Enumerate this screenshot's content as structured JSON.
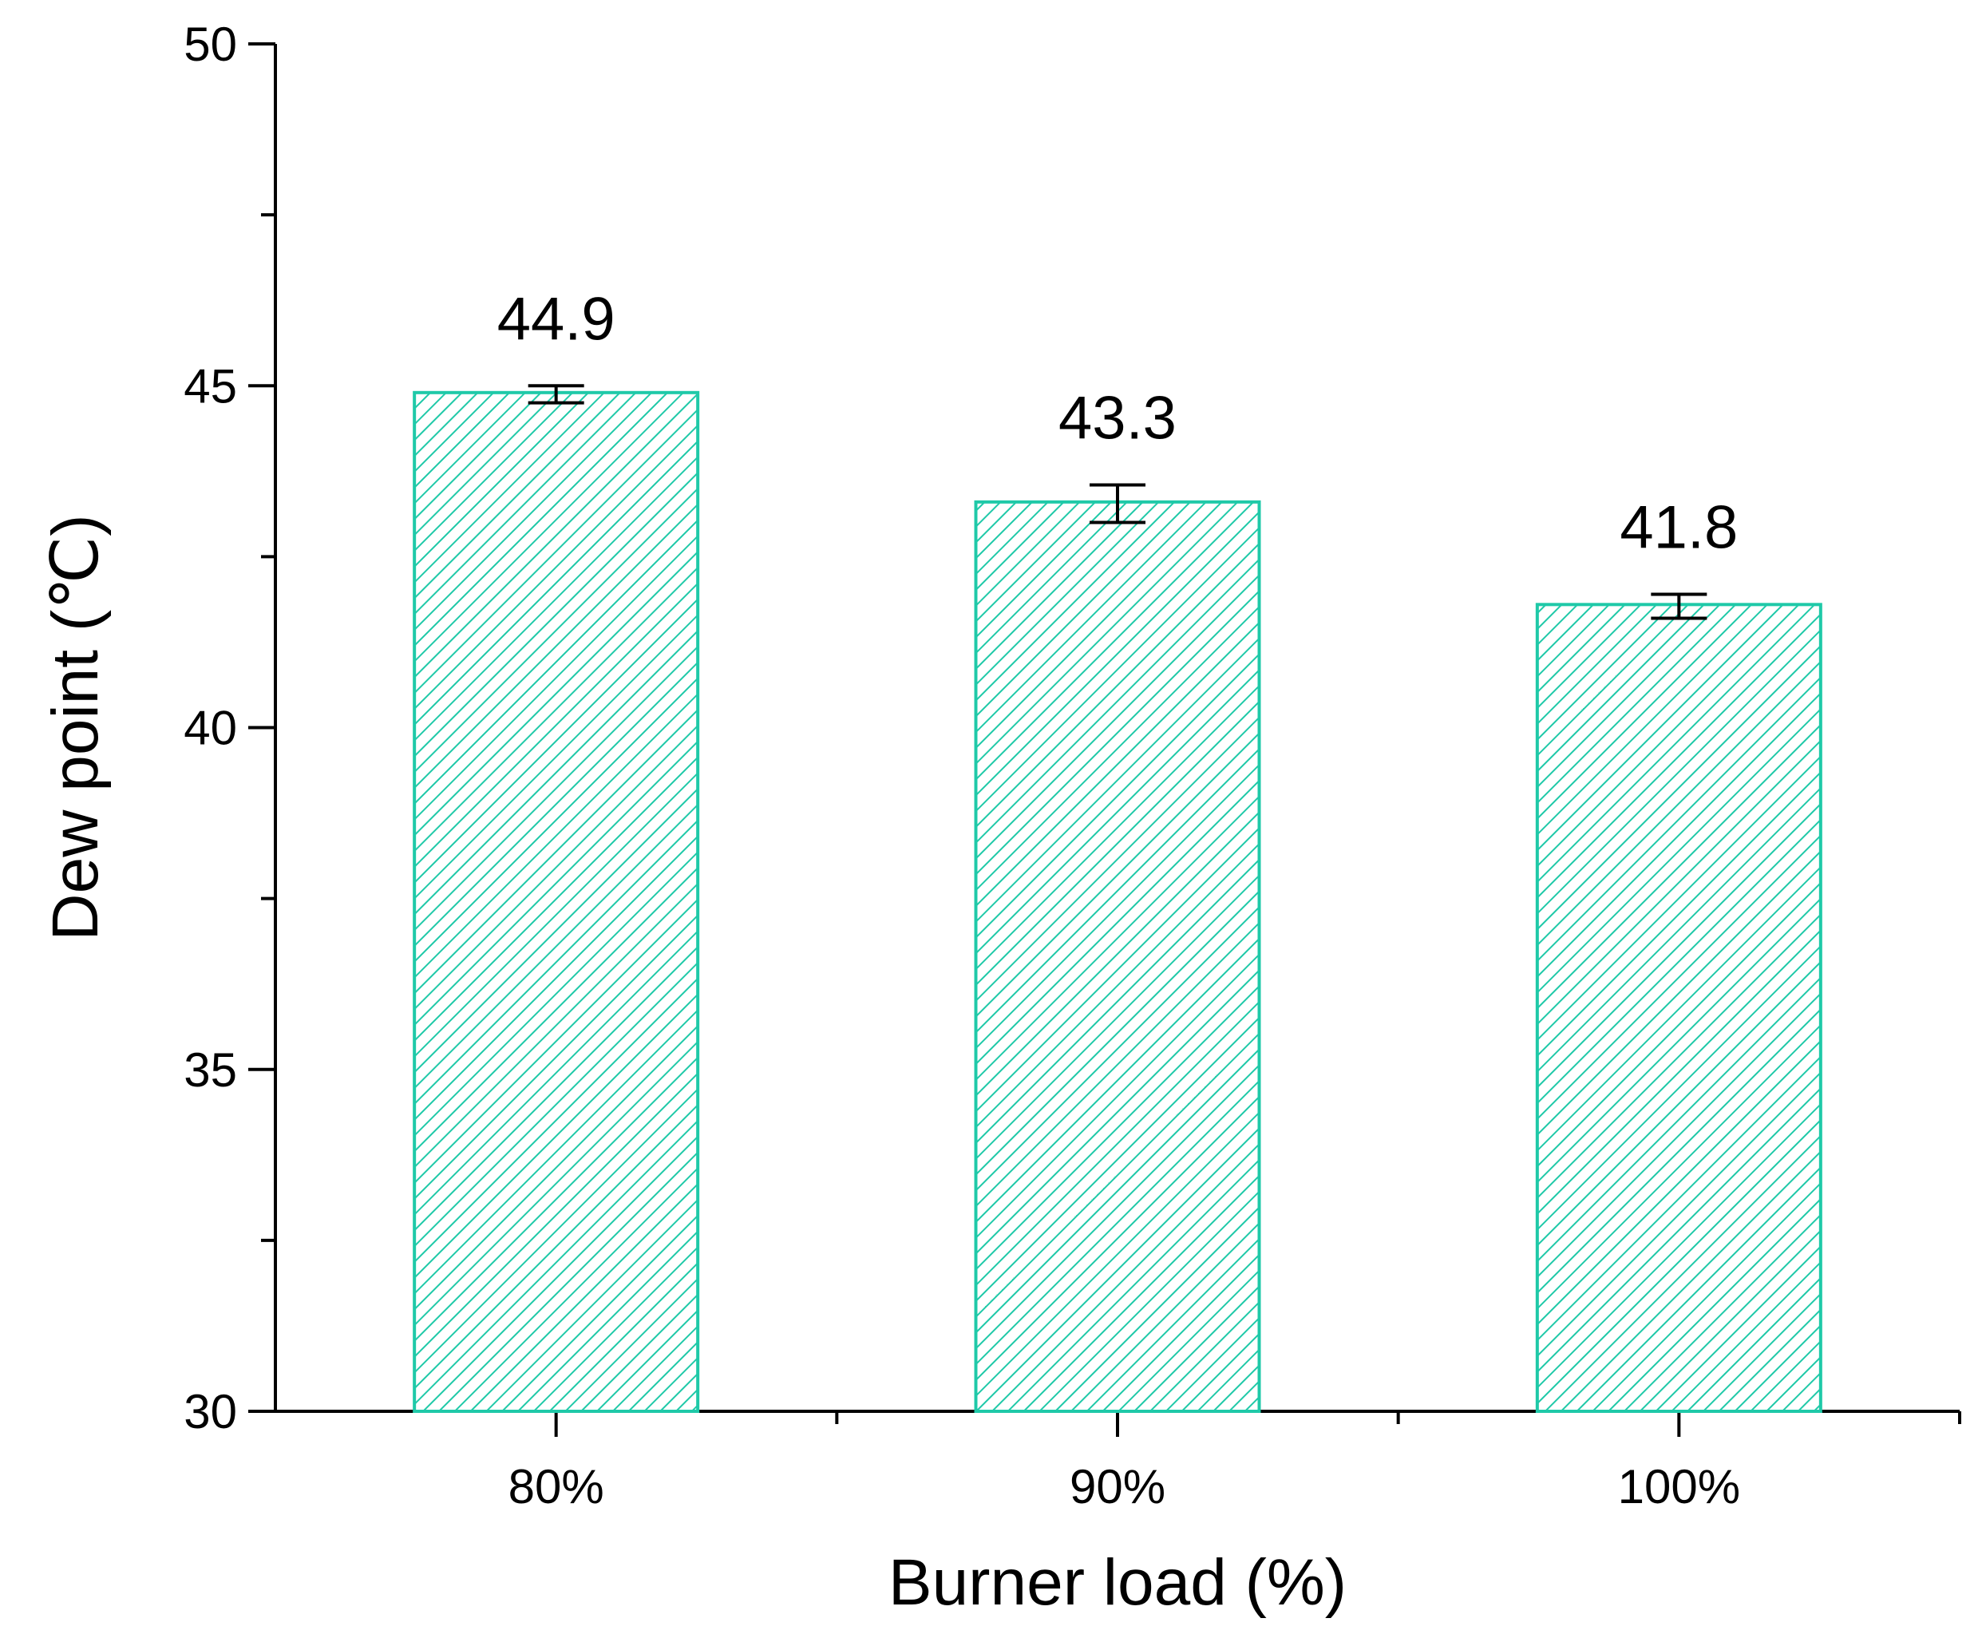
{
  "chart_data": {
    "type": "bar",
    "title": "",
    "xlabel": "Burner load (%)",
    "ylabel": "Dew point (℃)",
    "categories": [
      "80%",
      "90%",
      "100%"
    ],
    "series": [
      {
        "values": [
          44.9,
          43.3,
          41.8
        ],
        "value_labels": [
          "44.9",
          "43.3",
          "41.8"
        ],
        "error_low": [
          44.75,
          43.0,
          41.6
        ],
        "error_high": [
          45.0,
          43.55,
          41.95
        ],
        "color": "#1fc9a8",
        "fill_pattern": "diagonal-hatch"
      }
    ],
    "ylim": [
      30,
      50
    ],
    "y_major_ticks": [
      30,
      35,
      40,
      45,
      50
    ],
    "y_tick_labels": [
      "30",
      "35",
      "40",
      "45",
      "50"
    ],
    "y_minor_ticks": [
      32.5,
      37.5,
      42.5,
      47.5
    ],
    "grid": false,
    "legend": "none"
  }
}
